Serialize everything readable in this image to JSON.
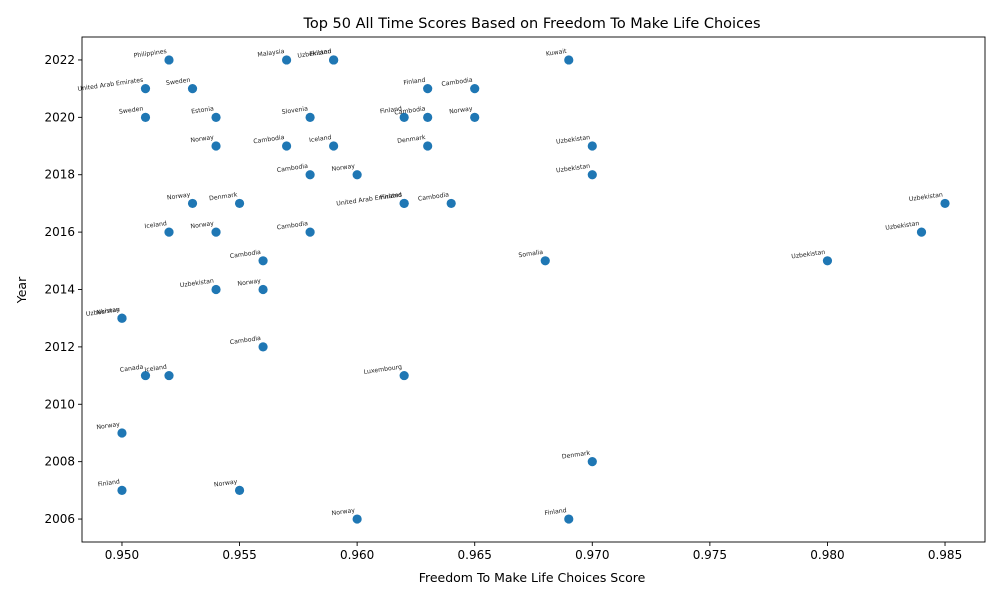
{
  "chart_data": {
    "type": "scatter",
    "title": "Top 50 All Time Scores Based on Freedom To Make Life Choices",
    "xlabel": "Freedom To Make Life Choices Score",
    "ylabel": "Year",
    "xlim": [
      0.9483,
      0.9867
    ],
    "ylim": [
      2005.2,
      2022.8
    ],
    "xticks": [
      0.95,
      0.955,
      0.96,
      0.965,
      0.97,
      0.975,
      0.98,
      0.985
    ],
    "xtick_labels": [
      "0.950",
      "0.955",
      "0.960",
      "0.965",
      "0.970",
      "0.975",
      "0.980",
      "0.985"
    ],
    "yticks": [
      2006,
      2008,
      2010,
      2012,
      2014,
      2016,
      2018,
      2020,
      2022
    ],
    "ytick_labels": [
      "2006",
      "2008",
      "2010",
      "2012",
      "2014",
      "2016",
      "2018",
      "2020",
      "2022"
    ],
    "grid": false,
    "color": "#1f77b4",
    "points": [
      {
        "x": 0.952,
        "y": 2022,
        "label": "Philippines"
      },
      {
        "x": 0.957,
        "y": 2022,
        "label": "Malaysia"
      },
      {
        "x": 0.959,
        "y": 2022,
        "label": "Uzbekistan"
      },
      {
        "x": 0.959,
        "y": 2022,
        "label": "Finland"
      },
      {
        "x": 0.969,
        "y": 2022,
        "label": "Kuwait"
      },
      {
        "x": 0.951,
        "y": 2021,
        "label": "United Arab Emirates"
      },
      {
        "x": 0.953,
        "y": 2021,
        "label": "Sweden"
      },
      {
        "x": 0.963,
        "y": 2021,
        "label": "Finland"
      },
      {
        "x": 0.965,
        "y": 2021,
        "label": "Cambodia"
      },
      {
        "x": 0.951,
        "y": 2020,
        "label": "Sweden"
      },
      {
        "x": 0.954,
        "y": 2020,
        "label": "Estonia"
      },
      {
        "x": 0.958,
        "y": 2020,
        "label": "Slovenia"
      },
      {
        "x": 0.962,
        "y": 2020,
        "label": "Finland"
      },
      {
        "x": 0.963,
        "y": 2020,
        "label": "Cambodia"
      },
      {
        "x": 0.965,
        "y": 2020,
        "label": "Norway"
      },
      {
        "x": 0.954,
        "y": 2019,
        "label": "Norway"
      },
      {
        "x": 0.957,
        "y": 2019,
        "label": "Cambodia"
      },
      {
        "x": 0.959,
        "y": 2019,
        "label": "Iceland"
      },
      {
        "x": 0.963,
        "y": 2019,
        "label": "Denmark"
      },
      {
        "x": 0.97,
        "y": 2019,
        "label": "Uzbekistan"
      },
      {
        "x": 0.958,
        "y": 2018,
        "label": "Cambodia"
      },
      {
        "x": 0.96,
        "y": 2018,
        "label": "Norway"
      },
      {
        "x": 0.97,
        "y": 2018,
        "label": "Uzbekistan"
      },
      {
        "x": 0.953,
        "y": 2017,
        "label": "Norway"
      },
      {
        "x": 0.955,
        "y": 2017,
        "label": "Denmark"
      },
      {
        "x": 0.962,
        "y": 2017,
        "label": "United Arab Emirates"
      },
      {
        "x": 0.962,
        "y": 2017,
        "label": "Finland"
      },
      {
        "x": 0.964,
        "y": 2017,
        "label": "Cambodia"
      },
      {
        "x": 0.985,
        "y": 2017,
        "label": "Uzbekistan"
      },
      {
        "x": 0.952,
        "y": 2016,
        "label": "Iceland"
      },
      {
        "x": 0.954,
        "y": 2016,
        "label": "Norway"
      },
      {
        "x": 0.958,
        "y": 2016,
        "label": "Cambodia"
      },
      {
        "x": 0.984,
        "y": 2016,
        "label": "Uzbekistan"
      },
      {
        "x": 0.956,
        "y": 2015,
        "label": "Cambodia"
      },
      {
        "x": 0.968,
        "y": 2015,
        "label": "Somalia"
      },
      {
        "x": 0.98,
        "y": 2015,
        "label": "Uzbekistan"
      },
      {
        "x": 0.954,
        "y": 2014,
        "label": "Uzbekistan"
      },
      {
        "x": 0.956,
        "y": 2014,
        "label": "Norway"
      },
      {
        "x": 0.95,
        "y": 2013,
        "label": "Uzbekistan"
      },
      {
        "x": 0.95,
        "y": 2013,
        "label": "Norway"
      },
      {
        "x": 0.956,
        "y": 2012,
        "label": "Cambodia"
      },
      {
        "x": 0.951,
        "y": 2011,
        "label": "Canada"
      },
      {
        "x": 0.952,
        "y": 2011,
        "label": "Iceland"
      },
      {
        "x": 0.962,
        "y": 2011,
        "label": "Luxembourg"
      },
      {
        "x": 0.95,
        "y": 2009,
        "label": "Norway"
      },
      {
        "x": 0.97,
        "y": 2008,
        "label": "Denmark"
      },
      {
        "x": 0.95,
        "y": 2007,
        "label": "Finland"
      },
      {
        "x": 0.955,
        "y": 2007,
        "label": "Norway"
      },
      {
        "x": 0.96,
        "y": 2006,
        "label": "Norway"
      },
      {
        "x": 0.969,
        "y": 2006,
        "label": "Finland"
      }
    ]
  }
}
